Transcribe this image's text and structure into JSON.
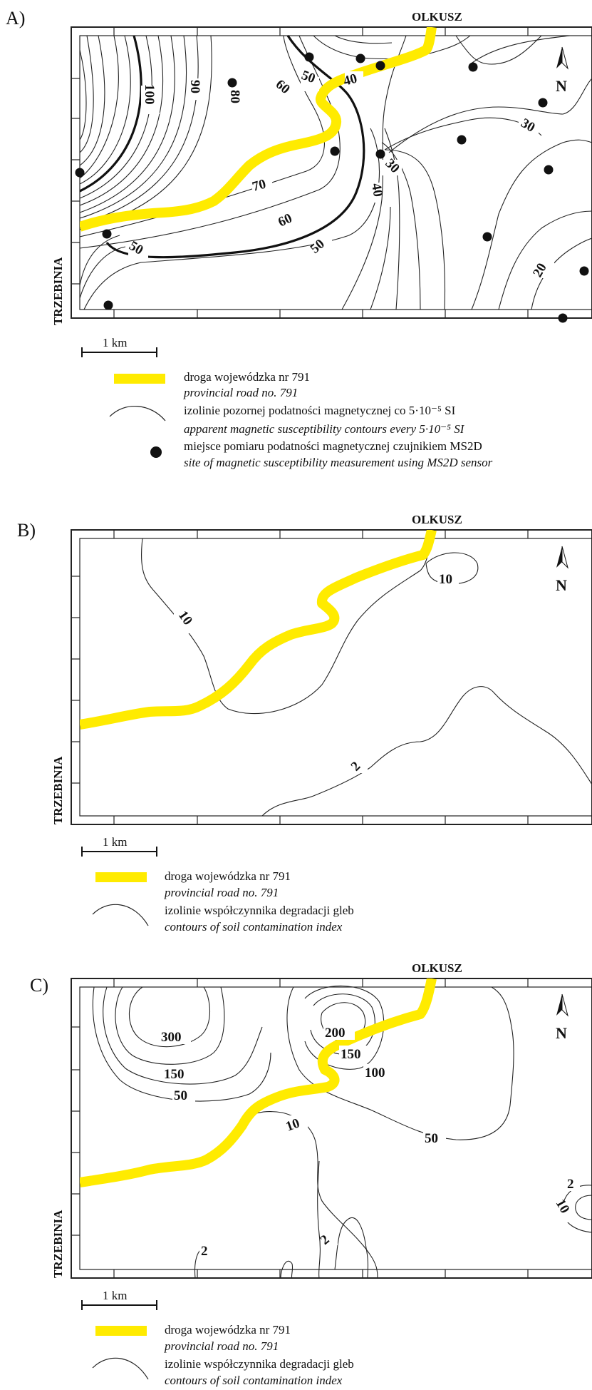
{
  "colors": {
    "road": "#ffeb00",
    "contour": "#222222",
    "point": "#111111"
  },
  "panels": [
    {
      "letter": "A)",
      "town_north": "OLKUSZ",
      "town_west": "TRZEBINIA",
      "north_label": "N",
      "scale_label": "1 km",
      "contour_labels": [
        "100",
        "90",
        "80",
        "60",
        "50",
        "40",
        "30",
        "70",
        "60",
        "50",
        "30",
        "40",
        "50",
        "20"
      ],
      "legend": [
        {
          "symbol": "road-line",
          "label_pl": "droga wojewódzka nr 791",
          "label_en": "provincial road no. 791"
        },
        {
          "symbol": "contour-line",
          "label_pl": "izolinie pozornej podatności magnetycznej co 5·10⁻⁵ SI",
          "label_en": "apparent magnetic susceptibility contours every 5·10⁻⁵ SI"
        },
        {
          "symbol": "dot",
          "label_pl": "miejsce pomiaru podatności magnetycznej czujnikiem MS2D",
          "label_en": "site of magnetic susceptibility measurement using MS2D sensor"
        }
      ]
    },
    {
      "letter": "B)",
      "town_north": "OLKUSZ",
      "town_west": "TRZEBINIA",
      "north_label": "N",
      "scale_label": "1 km",
      "contour_labels": [
        "10",
        "10",
        "2"
      ],
      "legend": [
        {
          "symbol": "road-line",
          "label_pl": "droga wojewódzka nr 791",
          "label_en": "provincial road no. 791"
        },
        {
          "symbol": "contour-line",
          "label_pl": "izolinie współczynnika degradacji gleb",
          "label_en": "contours of soil contamination index"
        }
      ]
    },
    {
      "letter": "C)",
      "town_north": "OLKUSZ",
      "town_west": "TRZEBINIA",
      "north_label": "N",
      "scale_label": "1 km",
      "contour_labels": [
        "300",
        "150",
        "50",
        "200",
        "150",
        "100",
        "10",
        "50",
        "2",
        "2",
        "2",
        "10"
      ],
      "legend": [
        {
          "symbol": "road-line",
          "label_pl": "droga wojewódzka nr 791",
          "label_en": "provincial road no. 791"
        },
        {
          "symbol": "contour-line",
          "label_pl": "izolinie współczynnika degradacji gleb",
          "label_en": "contours of soil contamination index"
        }
      ]
    }
  ]
}
